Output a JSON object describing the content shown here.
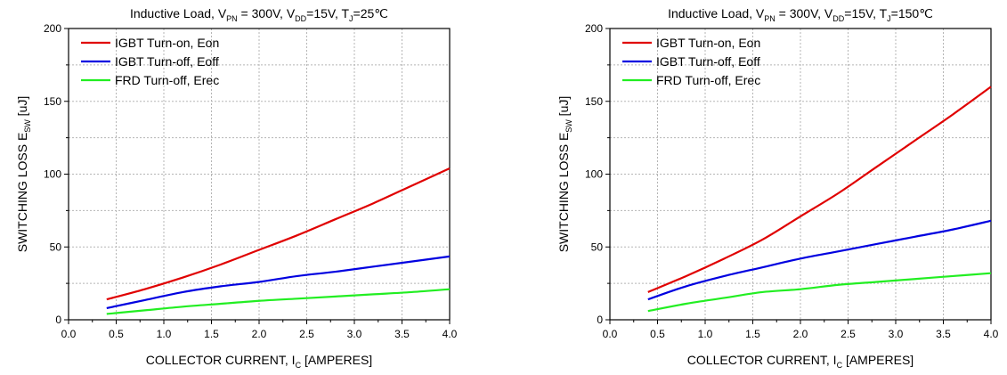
{
  "chart_data": [
    {
      "type": "line",
      "title": {
        "p1": "Inductive Load, V",
        "s1": "PN",
        "p2": " = 300V, V",
        "s2": "DD",
        "p3": "=15V, T",
        "s3": "J",
        "p4": "=25℃"
      },
      "xlabel": {
        "main": "COLLECTOR CURRENT, I",
        "sub": "C",
        "tail": " [AMPERES]"
      },
      "ylabel": {
        "main": "SWITCHING LOSS E",
        "sub": "SW",
        "tail": " [uJ]"
      },
      "xlim": [
        0.0,
        4.0
      ],
      "ylim": [
        0,
        200
      ],
      "xticks": [
        "0.0",
        "0.5",
        "1.0",
        "1.5",
        "2.0",
        "2.5",
        "3.0",
        "3.5",
        "4.0"
      ],
      "yticks": [
        "0",
        "50",
        "100",
        "150",
        "200"
      ],
      "grid": true,
      "legend_position": "top-left",
      "series": [
        {
          "name": "IGBT Turn-on, Eon",
          "color": "#e00000",
          "x": [
            0.4,
            0.8,
            1.2,
            1.6,
            2.0,
            2.4,
            2.8,
            3.2,
            3.6,
            4.0
          ],
          "y": [
            14,
            21,
            29,
            38,
            48,
            58,
            69,
            80,
            92,
            104
          ]
        },
        {
          "name": "IGBT Turn-off, Eoff",
          "color": "#0000e0",
          "x": [
            0.4,
            0.8,
            1.2,
            1.6,
            2.0,
            2.4,
            2.8,
            3.2,
            3.6,
            4.0
          ],
          "y": [
            8,
            13.5,
            19,
            23,
            26,
            30,
            33,
            36.5,
            40,
            43.5
          ]
        },
        {
          "name": "FRD Turn-off, Erec",
          "color": "#22ee22",
          "x": [
            0.4,
            0.8,
            1.2,
            1.6,
            2.0,
            2.4,
            2.8,
            3.2,
            3.6,
            4.0
          ],
          "y": [
            4,
            6.5,
            9,
            11,
            13,
            14.5,
            16,
            17.5,
            19,
            21
          ]
        }
      ]
    },
    {
      "type": "line",
      "title": {
        "p1": "Inductive Load, V",
        "s1": "PN",
        "p2": " = 300V, V",
        "s2": "DD",
        "p3": "=15V, T",
        "s3": "J",
        "p4": "=150℃"
      },
      "xlabel": {
        "main": "COLLECTOR CURRENT, I",
        "sub": "C",
        "tail": " [AMPERES]"
      },
      "ylabel": {
        "main": "SWITCHING LOSS E",
        "sub": "SW",
        "tail": " [uJ]"
      },
      "xlim": [
        0.0,
        4.0
      ],
      "ylim": [
        0,
        200
      ],
      "xticks": [
        "0.0",
        "0.5",
        "1.0",
        "1.5",
        "2.0",
        "2.5",
        "3.0",
        "3.5",
        "4.0"
      ],
      "yticks": [
        "0",
        "50",
        "100",
        "150",
        "200"
      ],
      "grid": true,
      "legend_position": "top-left",
      "series": [
        {
          "name": "IGBT Turn-on, Eon",
          "color": "#e00000",
          "x": [
            0.4,
            0.8,
            1.2,
            1.6,
            2.0,
            2.4,
            2.8,
            3.2,
            3.6,
            4.0
          ],
          "y": [
            19,
            30,
            42,
            55,
            71,
            87,
            105,
            123,
            141,
            160
          ]
        },
        {
          "name": "IGBT Turn-off, Eoff",
          "color": "#0000e0",
          "x": [
            0.4,
            0.8,
            1.2,
            1.6,
            2.0,
            2.4,
            2.8,
            3.2,
            3.6,
            4.0
          ],
          "y": [
            14,
            23,
            30,
            36,
            42,
            47,
            52,
            57,
            62,
            68
          ]
        },
        {
          "name": "FRD Turn-off, Erec",
          "color": "#22ee22",
          "x": [
            0.4,
            0.8,
            1.2,
            1.6,
            2.0,
            2.4,
            2.8,
            3.2,
            3.6,
            4.0
          ],
          "y": [
            6,
            11,
            15,
            19,
            21,
            24,
            26,
            28,
            30,
            32
          ]
        }
      ]
    }
  ]
}
